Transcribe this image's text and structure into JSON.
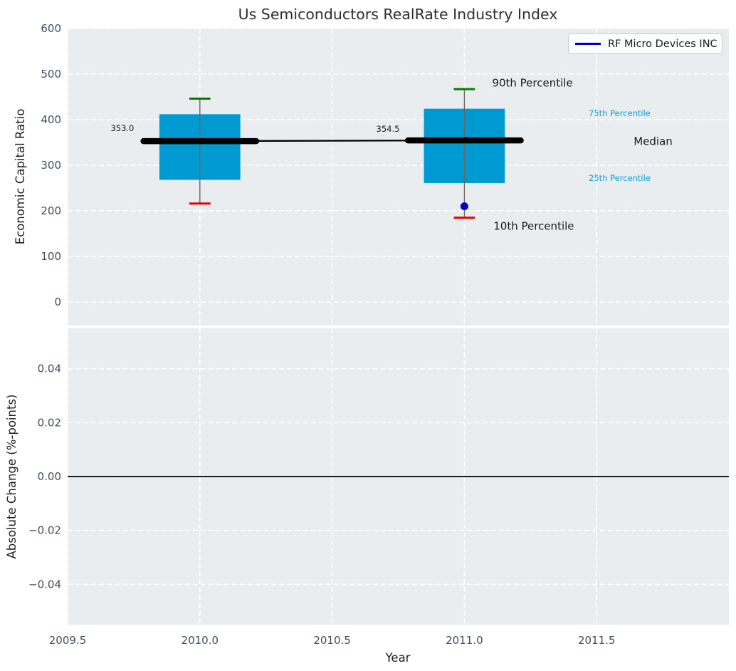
{
  "title": "Us Semiconductors RealRate Industry Index",
  "legend": {
    "label": "RF Micro Devices INC",
    "line_color": "#0000cd"
  },
  "colors": {
    "axes_background": "#e9edf0",
    "grid": "#ffffff",
    "box_fill": "#009ad2",
    "percentile_label": "#0d9fd2",
    "whisker": "#666666",
    "cap_90th": "#008000",
    "cap_10th": "#e80000",
    "median_line": "#000000",
    "company_marker": "#0000cd",
    "tick_text": "#3d4f60",
    "zero_line": "#000000"
  },
  "chart_data": [
    {
      "type": "boxplot",
      "title": "Us Semiconductors RealRate Industry Index",
      "ylabel": "Economic Capital Ratio",
      "ylim": [
        -51.6,
        600
      ],
      "yticks": [
        0,
        100,
        200,
        300,
        400,
        500,
        600
      ],
      "ytick_labels": [
        "0",
        "100",
        "200",
        "300",
        "400",
        "500",
        "600"
      ],
      "xlim": [
        2009.5,
        2012.0
      ],
      "xticks": [
        2009.5,
        2010.0,
        2010.5,
        2011.0,
        2011.5
      ],
      "grid": true,
      "legend_position": "upper right",
      "boxes": [
        {
          "x": 2010,
          "p10": 216,
          "p25": 268,
          "median": 353.0,
          "p75": 412,
          "p90": 446,
          "median_label": "353.0"
        },
        {
          "x": 2011,
          "p10": 185,
          "p25": 261,
          "median": 354.5,
          "p75": 424,
          "p90": 467,
          "median_label": "354.5"
        }
      ],
      "box_half_width": 0.153,
      "cap_half_width": 0.04,
      "median_bar_half_width": 0.213,
      "median_trend_line": {
        "x": [
          2010,
          2011
        ],
        "y": [
          353.0,
          354.5
        ]
      },
      "series": [
        {
          "name": "RF Micro Devices INC",
          "type": "scatter",
          "x": [
            2011
          ],
          "y": [
            210
          ],
          "color": "#0000cd"
        }
      ],
      "annotations": [
        {
          "text": "90th Percentile",
          "x": 2011.105,
          "y": 481,
          "anchor": "start",
          "size": 15,
          "color": "#1a1a1a"
        },
        {
          "text": "10th Percentile",
          "x": 2011.11,
          "y": 167,
          "anchor": "start",
          "size": 15,
          "color": "#1a1a1a"
        },
        {
          "text": "75th Percentile",
          "x": 2011.47,
          "y": 414,
          "anchor": "start",
          "size": 11.5,
          "color": "#0d9fd2"
        },
        {
          "text": "Median",
          "x": 2011.64,
          "y": 353,
          "anchor": "start",
          "size": 15,
          "color": "#1a1a1a"
        },
        {
          "text": "25th Percentile",
          "x": 2011.47,
          "y": 272,
          "anchor": "start",
          "size": 11.5,
          "color": "#0d9fd2"
        },
        {
          "text": "353.0",
          "x": 2009.707,
          "y": 381,
          "anchor": "middle",
          "size": 11.5,
          "color": "#1a1a1a"
        },
        {
          "text": "354.5",
          "x": 2010.711,
          "y": 380,
          "anchor": "middle",
          "size": 11.5,
          "color": "#1a1a1a"
        }
      ]
    },
    {
      "type": "line",
      "ylabel": "Absolute Change (%-points)",
      "xlabel": "Year",
      "ylim": [
        -0.055,
        0.055
      ],
      "yticks": [
        0.04,
        0.02,
        0.0,
        -0.02,
        -0.04
      ],
      "ytick_labels": [
        "0.04",
        "0.02",
        "0.00",
        "−0.02",
        "−0.04"
      ],
      "xlim": [
        2009.5,
        2012.0
      ],
      "xticks": [
        2009.5,
        2010.0,
        2010.5,
        2011.0,
        2011.5
      ],
      "xtick_labels": [
        "2009.5",
        "2010.0",
        "2010.5",
        "2011.0",
        "2011.5"
      ],
      "grid": true,
      "zero_line": 0.0,
      "series": []
    }
  ]
}
